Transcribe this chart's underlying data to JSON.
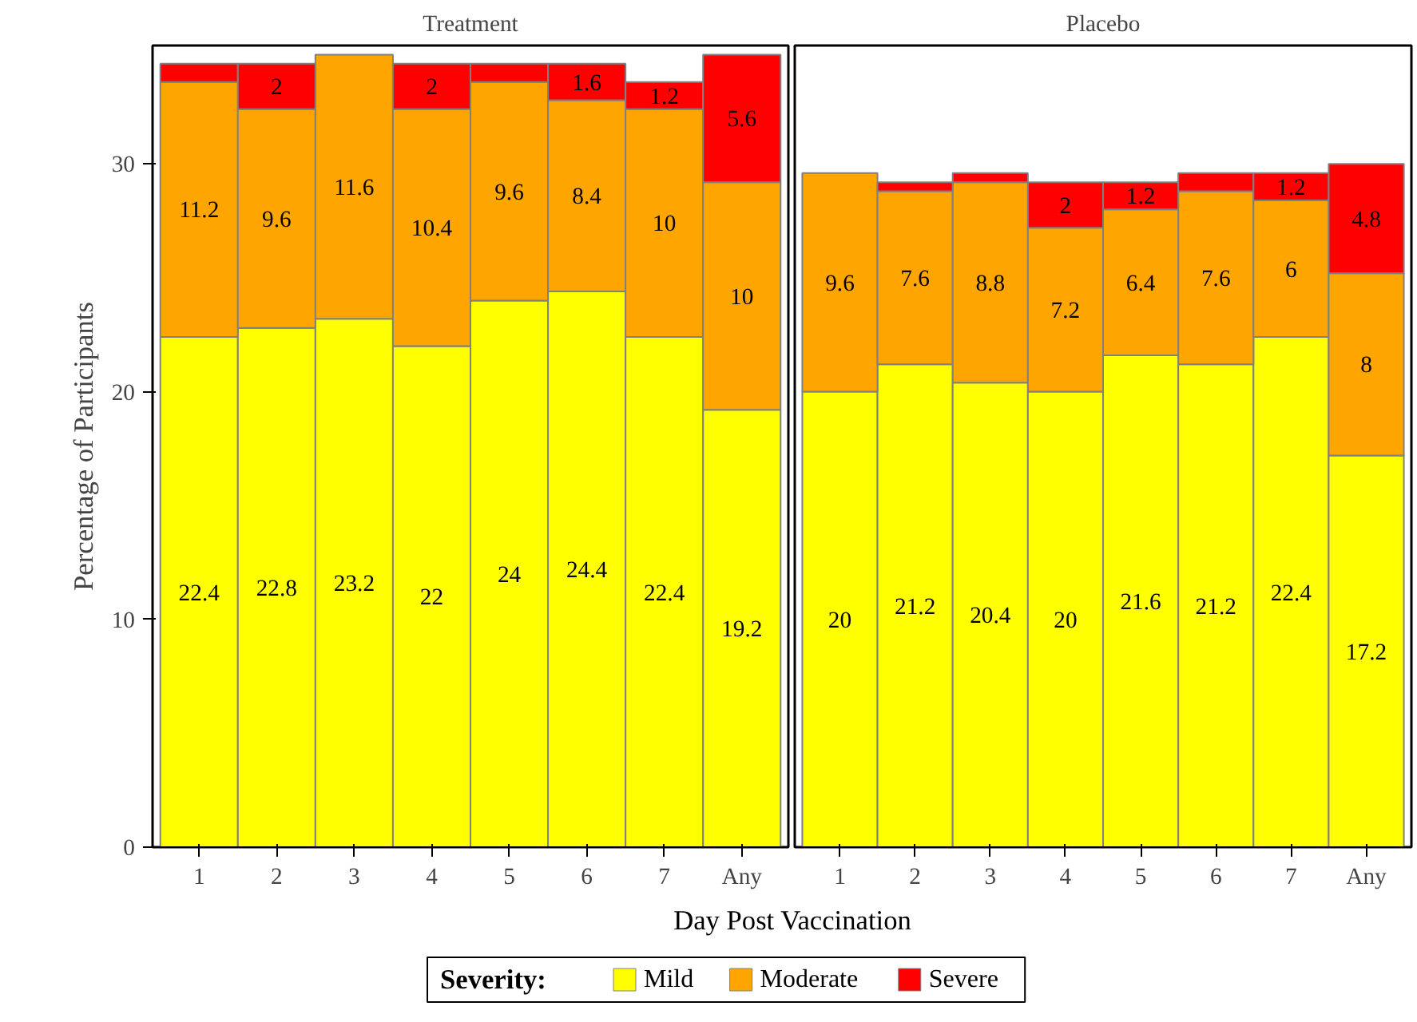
{
  "chart_data": [
    {
      "type": "bar",
      "title": "Treatment",
      "ylabel": "Percentage of Participants",
      "xlabel": "Day Post Vaccination",
      "stacked": true,
      "legend": "bottom",
      "legend_title": "Severity:",
      "categories": [
        "1",
        "2",
        "3",
        "4",
        "5",
        "6",
        "7",
        "Any"
      ],
      "ylim": [
        0,
        35.2
      ],
      "yticks": [
        0,
        10,
        20,
        30
      ],
      "series": [
        {
          "name": "Mild",
          "color": "#ffff00",
          "values": [
            22.4,
            22.8,
            23.2,
            22,
            24,
            24.4,
            22.4,
            19.2
          ],
          "value_labels": [
            "22.4",
            "22.8",
            "23.2",
            "22",
            "24",
            "24.4",
            "22.4",
            "19.2"
          ]
        },
        {
          "name": "Moderate",
          "color": "#ffa500",
          "values": [
            11.2,
            9.6,
            11.6,
            10.4,
            9.6,
            8.4,
            10,
            10
          ],
          "value_labels": [
            "11.2",
            "9.6",
            "11.6",
            "10.4",
            "9.6",
            "8.4",
            "10",
            "10"
          ]
        },
        {
          "name": "Severe",
          "color": "#ff0000",
          "values": [
            0.8,
            2,
            0,
            2,
            0.8,
            1.6,
            1.2,
            5.6
          ],
          "value_labels": [
            null,
            "2",
            null,
            "2",
            null,
            "1.6",
            "1.2",
            "5.6"
          ]
        }
      ]
    },
    {
      "type": "bar",
      "title": "Placebo",
      "stacked": true,
      "tick_labels": "x",
      "categories": [
        "1",
        "2",
        "3",
        "4",
        "5",
        "6",
        "7",
        "Any"
      ],
      "ylim": [
        0,
        35.2
      ],
      "yticks": [
        0,
        10,
        20,
        30
      ],
      "series": [
        {
          "color": "#ffff00",
          "values": [
            20,
            21.2,
            20.4,
            20,
            21.6,
            21.2,
            22.4,
            17.2
          ],
          "value_labels": [
            "20",
            "21.2",
            "20.4",
            "20",
            "21.6",
            "21.2",
            "22.4",
            "17.2"
          ]
        },
        {
          "color": "#ffa500",
          "values": [
            9.6,
            7.6,
            8.8,
            7.2,
            6.4,
            7.6,
            6,
            8
          ],
          "value_labels": [
            "9.6",
            "7.6",
            "8.8",
            "7.2",
            "6.4",
            "7.6",
            "6",
            "8"
          ]
        },
        {
          "color": "#ff0000",
          "values": [
            0,
            0.4,
            0.4,
            2,
            1.2,
            0.8,
            1.2,
            4.8
          ],
          "value_labels": [
            null,
            null,
            null,
            "2",
            "1.2",
            null,
            "1.2",
            "4.8"
          ]
        }
      ]
    }
  ]
}
